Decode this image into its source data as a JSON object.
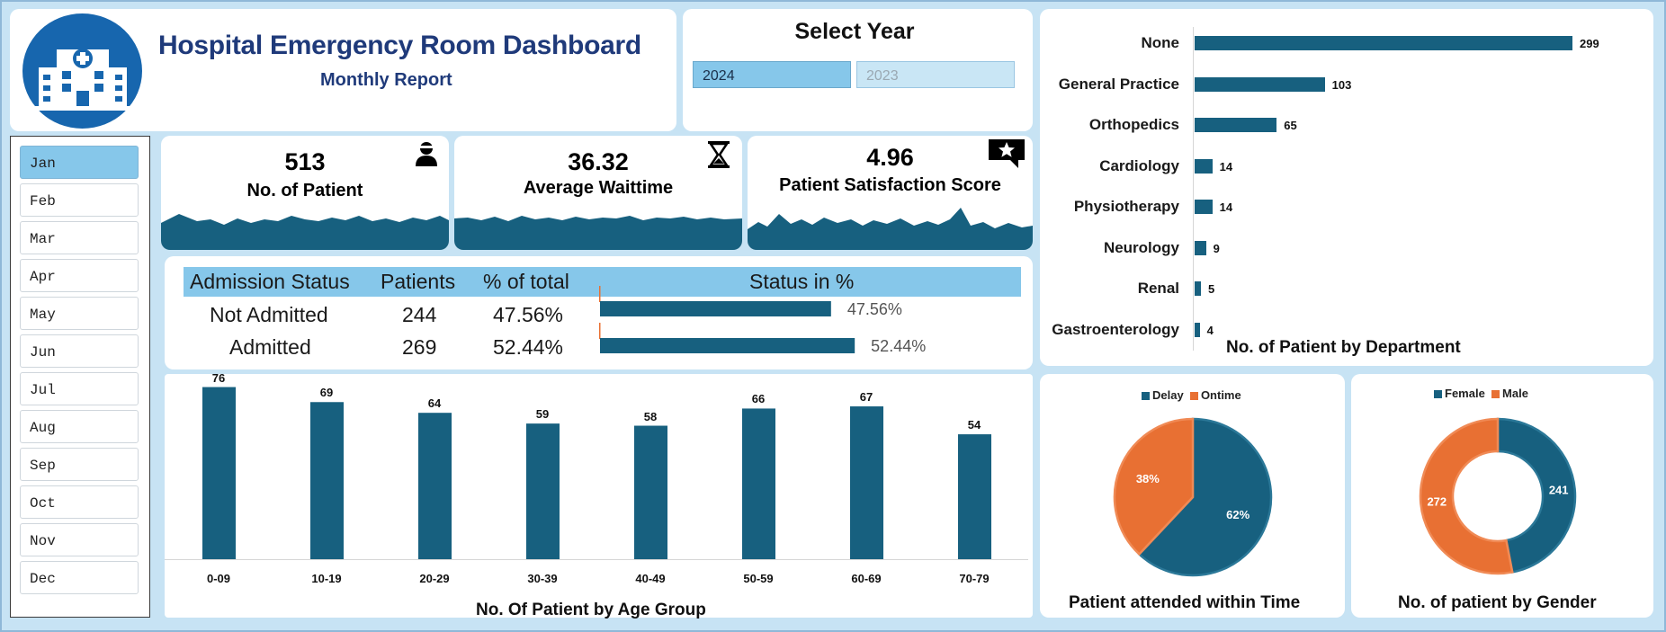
{
  "header": {
    "title": "Hospital Emergency Room Dashboard",
    "subtitle": "Monthly Report",
    "logo_icon": "hospital-icon"
  },
  "year_selector": {
    "title": "Select Year",
    "options": [
      "2024",
      "2023"
    ],
    "selected": "2024"
  },
  "months": {
    "items": [
      "Jan",
      "Feb",
      "Mar",
      "Apr",
      "May",
      "Jun",
      "Jul",
      "Aug",
      "Sep",
      "Oct",
      "Nov",
      "Dec"
    ],
    "selected": "Jan"
  },
  "kpis": [
    {
      "value": "513",
      "label": "No. of Patient",
      "icon": "patient-icon"
    },
    {
      "value": "36.32",
      "label": "Average Waittime",
      "icon": "hourglass-icon"
    },
    {
      "value": "4.96",
      "label": "Patient Satisfaction  Score",
      "icon": "rating-star-icon"
    }
  ],
  "admission": {
    "headers": [
      "Admission Status",
      "Patients",
      "% of total",
      "Status in %"
    ],
    "rows": [
      {
        "status": "Not Admitted",
        "patients": "244",
        "pct": "47.56%",
        "pct_value": 47.56
      },
      {
        "status": "Admitted",
        "patients": "269",
        "pct": "52.44%",
        "pct_value": 52.44
      }
    ]
  },
  "department_chart": {
    "title": "No. of Patient by Department",
    "categories": [
      "None",
      "General Practice",
      "Orthopedics",
      "Cardiology",
      "Physiotherapy",
      "Neurology",
      "Renal",
      "Gastroenterology"
    ],
    "values": [
      299,
      103,
      65,
      14,
      14,
      9,
      5,
      4
    ]
  },
  "age_chart": {
    "title": "No. Of Patient by Age Group",
    "categories": [
      "0-09",
      "10-19",
      "20-29",
      "30-39",
      "40-49",
      "50-59",
      "60-69",
      "70-79"
    ],
    "values": [
      76,
      69,
      64,
      59,
      58,
      66,
      67,
      54
    ]
  },
  "time_chart": {
    "title": "Patient attended within Time",
    "legend": [
      "Delay",
      "Ontime"
    ],
    "values": [
      62,
      38
    ],
    "labels": [
      "62%",
      "38%"
    ]
  },
  "gender_chart": {
    "title": "No. of patient by Gender",
    "legend": [
      "Female",
      "Male"
    ],
    "values": [
      241,
      272
    ],
    "labels": [
      "241",
      "272"
    ]
  },
  "colors": {
    "primary": "#17607f",
    "accent": "#e87033",
    "background": "#c7e3f4",
    "header_text": "#1f3a7a",
    "table_header": "#86c7ea",
    "logo": "#1766ae"
  },
  "chart_data": [
    {
      "type": "bar",
      "orientation": "horizontal",
      "title": "No. of Patient by Department",
      "categories": [
        "None",
        "General Practice",
        "Orthopedics",
        "Cardiology",
        "Physiotherapy",
        "Neurology",
        "Renal",
        "Gastroenterology"
      ],
      "values": [
        299,
        103,
        65,
        14,
        14,
        9,
        5,
        4
      ]
    },
    {
      "type": "bar",
      "title": "No. Of Patient by Age Group",
      "categories": [
        "0-09",
        "10-19",
        "20-29",
        "30-39",
        "40-49",
        "50-59",
        "60-69",
        "70-79"
      ],
      "values": [
        76,
        69,
        64,
        59,
        58,
        66,
        67,
        54
      ]
    },
    {
      "type": "pie",
      "title": "Patient attended within Time",
      "categories": [
        "Delay",
        "Ontime"
      ],
      "values": [
        62,
        38
      ],
      "legend": "top"
    },
    {
      "type": "pie",
      "variant": "donut",
      "title": "No. of patient by Gender",
      "categories": [
        "Female",
        "Male"
      ],
      "values": [
        241,
        272
      ],
      "legend": "top"
    },
    {
      "type": "bar",
      "orientation": "horizontal",
      "title": "",
      "categories": [
        "Not Admitted",
        "Admitted"
      ],
      "values": [
        47.56,
        52.44
      ]
    }
  ]
}
